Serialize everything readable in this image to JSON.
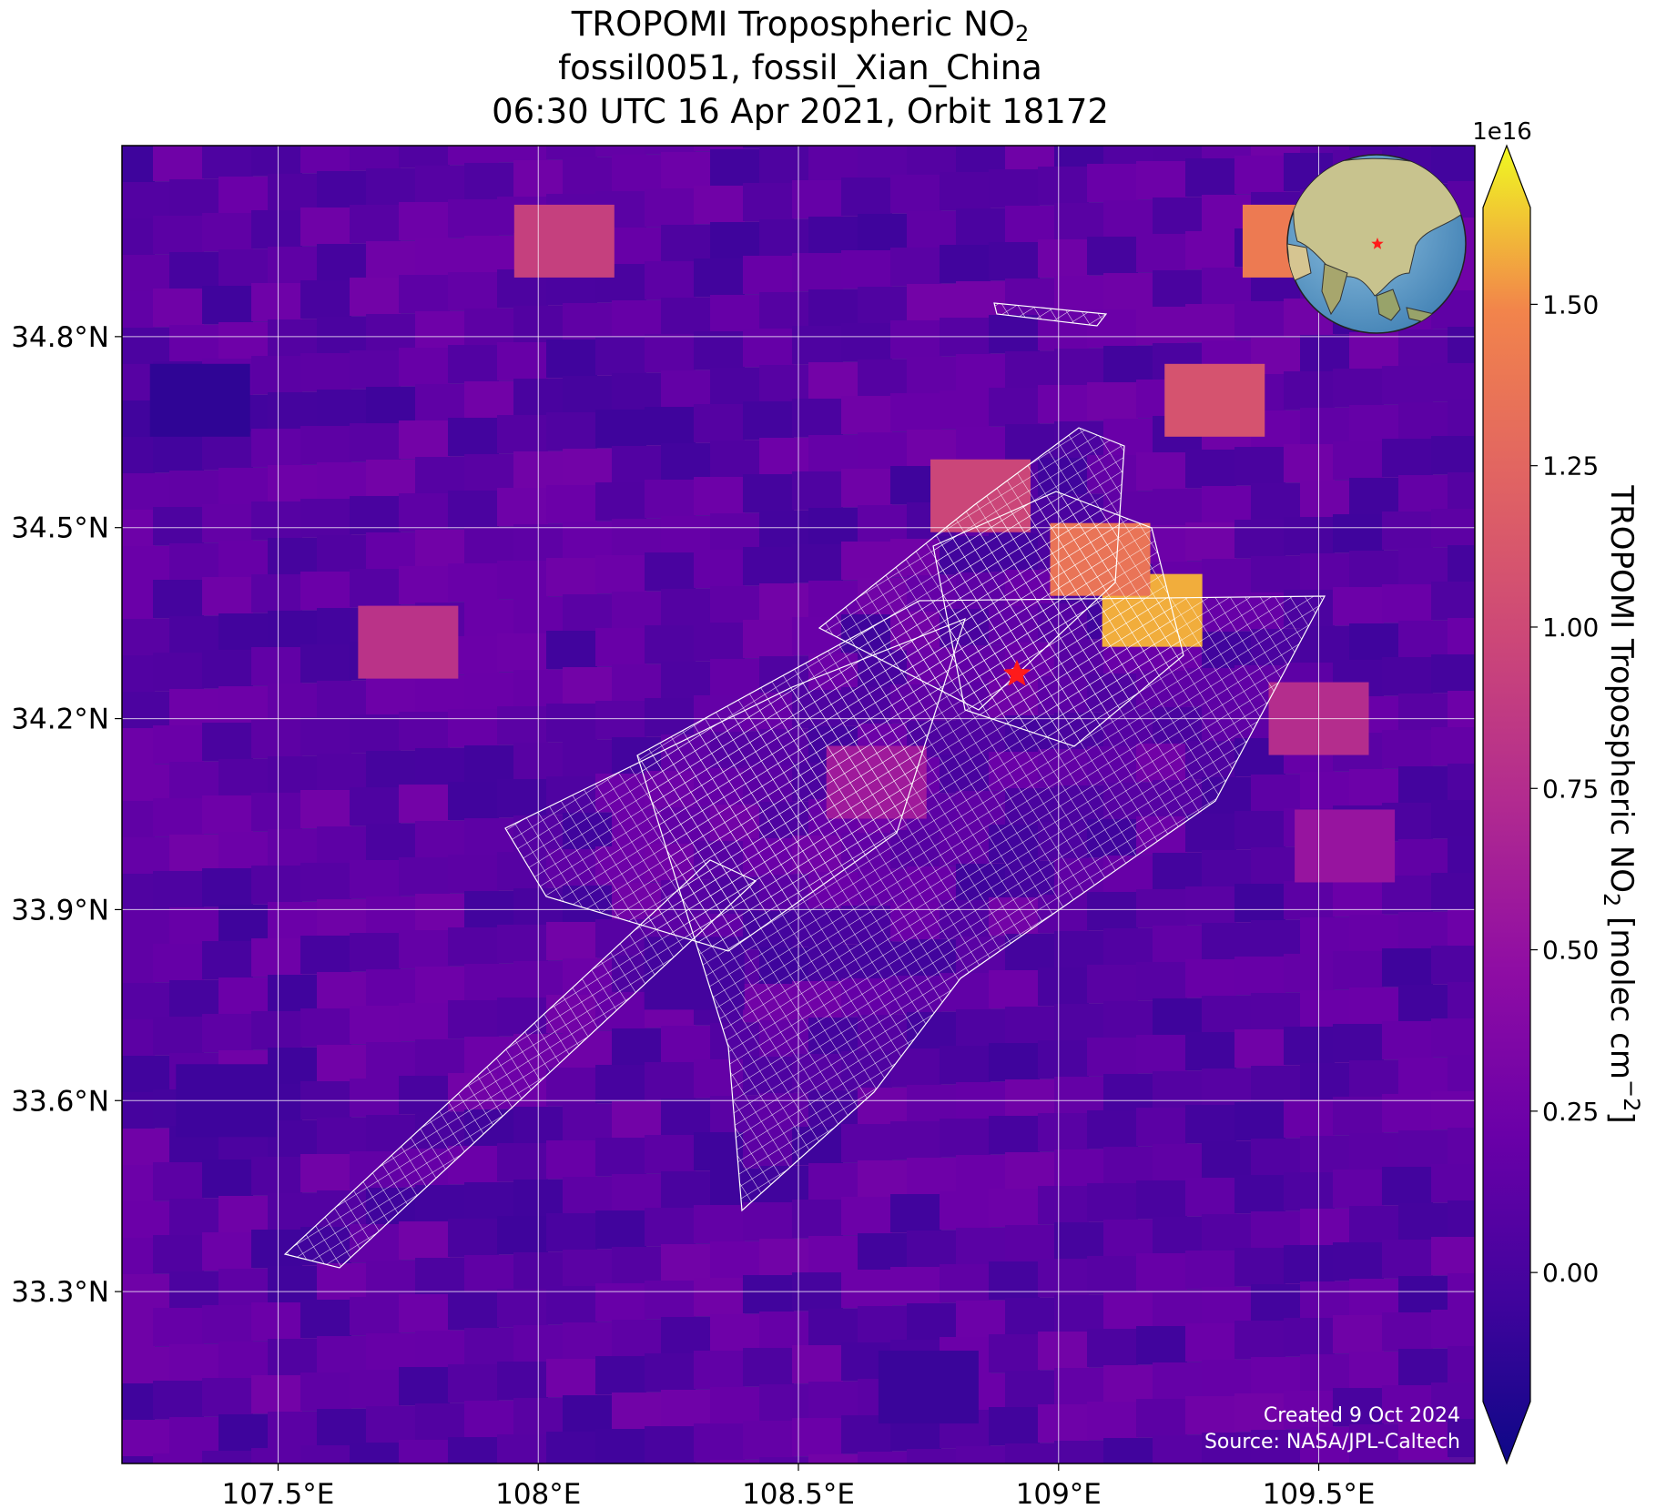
{
  "title": {
    "line1_prefix": "TROPOMI Tropospheric NO",
    "line1_sub": "2",
    "line2": "fossil0051, fossil_Xian_China",
    "line3": "06:30 UTC 16 Apr 2021, Orbit 18172"
  },
  "map": {
    "lon_range": [
      107.2,
      109.8
    ],
    "lat_range": [
      33.03,
      35.1
    ],
    "lon_ticks": [
      107.5,
      108.0,
      108.5,
      109.0,
      109.5
    ],
    "lon_tick_labels": [
      "107.5°E",
      "108°E",
      "108.5°E",
      "109°E",
      "109.5°E"
    ],
    "lat_ticks": [
      33.3,
      33.6,
      33.9,
      34.2,
      34.5,
      34.8
    ],
    "lat_tick_labels": [
      "33.3°N",
      "33.6°N",
      "33.9°N",
      "34.2°N",
      "34.5°N",
      "34.8°N"
    ],
    "gridlines": true,
    "site_marker": {
      "lon": 108.92,
      "lat": 34.27,
      "symbol": "star",
      "color": "#ff1a1a"
    },
    "inset_globe": {
      "location": "top-right",
      "marker_color": "#ff1a1a"
    },
    "background_color": "#5a0fa0"
  },
  "colorbar": {
    "label_prefix": "TROPOMI Tropospheric NO",
    "label_sub": "2",
    "label_suffix": " [molec cm",
    "label_sup": "−2",
    "label_end": "]",
    "offset_text": "1e16",
    "range": [
      -0.2,
      1.65
    ],
    "ticks": [
      0.0,
      0.25,
      0.5,
      0.75,
      1.0,
      1.25,
      1.5
    ],
    "tick_labels": [
      "0.00",
      "0.25",
      "0.50",
      "0.75",
      "1.00",
      "1.25",
      "1.50"
    ],
    "extend": "both",
    "colormap": "plasma"
  },
  "credits": {
    "line1": "Created 9 Oct 2024",
    "line2": "Source: NASA/JPL-Caltech"
  },
  "hotspots": [
    {
      "lon": 109.18,
      "lat": 34.37,
      "value": 1.5
    },
    {
      "lon": 109.08,
      "lat": 34.45,
      "value": 1.3
    },
    {
      "lon": 109.45,
      "lat": 34.95,
      "value": 1.35
    },
    {
      "lon": 109.3,
      "lat": 34.7,
      "value": 1.05
    },
    {
      "lon": 108.85,
      "lat": 34.55,
      "value": 0.95
    },
    {
      "lon": 108.05,
      "lat": 34.95,
      "value": 0.9
    },
    {
      "lon": 107.75,
      "lat": 34.32,
      "value": 0.8
    },
    {
      "lon": 109.5,
      "lat": 34.2,
      "value": 0.75
    },
    {
      "lon": 109.55,
      "lat": 34.0,
      "value": 0.55
    },
    {
      "lon": 108.65,
      "lat": 34.1,
      "value": 0.6
    },
    {
      "lon": 107.4,
      "lat": 33.6,
      "value": 0.02
    },
    {
      "lon": 107.35,
      "lat": 34.7,
      "value": -0.05
    },
    {
      "lon": 108.3,
      "lat": 33.8,
      "value": 0.05
    },
    {
      "lon": 108.75,
      "lat": 33.15,
      "value": 0.0
    }
  ]
}
